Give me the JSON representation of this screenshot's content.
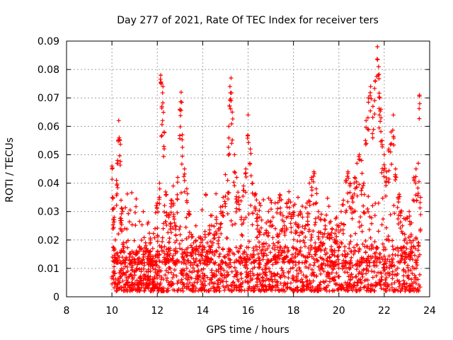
{
  "chart_data": {
    "type": "scatter",
    "title": "Day 277 of 2021, Rate Of TEC Index for receiver ters",
    "xlabel": "GPS time / hours",
    "ylabel": "ROTI / TECUs",
    "xlim": [
      8,
      24
    ],
    "ylim": [
      0,
      0.09
    ],
    "xticks": [
      8,
      10,
      12,
      14,
      16,
      18,
      20,
      22,
      24
    ],
    "yticks": [
      0,
      0.01,
      0.02,
      0.03,
      0.04,
      0.05,
      0.06,
      0.07,
      0.08,
      0.09
    ],
    "xtick_labels": [
      "8",
      "10",
      "12",
      "14",
      "16",
      "18",
      "20",
      "22",
      "24"
    ],
    "ytick_labels": [
      "0",
      "0.01",
      "0.02",
      "0.03",
      "0.04",
      "0.05",
      "0.06",
      "0.07",
      "0.08",
      "0.09"
    ],
    "grid": true,
    "marker": "+",
    "color": "#ff0000",
    "series": [
      {
        "x": [
          10.0,
          10.05,
          10.1,
          10.15,
          10.2,
          10.25,
          10.3,
          10.35,
          10.4,
          10.45,
          10.5,
          10.6,
          10.7,
          10.8,
          10.9,
          11.0,
          11.1,
          11.2,
          11.3,
          11.4,
          11.5,
          11.6,
          11.7,
          11.8,
          11.9,
          12.0,
          12.1,
          12.15,
          12.2,
          12.25,
          12.3,
          12.4,
          12.5,
          12.6,
          12.7,
          12.8,
          12.9,
          13.0,
          13.05,
          13.1,
          13.2,
          13.3,
          13.4,
          13.5,
          13.6,
          13.7,
          13.8,
          13.9,
          14.0,
          14.1,
          14.2,
          14.3,
          14.4,
          14.5,
          14.6,
          14.7,
          14.8,
          14.9,
          15.0,
          15.1,
          15.15,
          15.2,
          15.25,
          15.3,
          15.4,
          15.5,
          15.6,
          15.7,
          15.8,
          15.9,
          16.0,
          16.1,
          16.2,
          16.3,
          16.4,
          16.5,
          16.6,
          16.7,
          16.8,
          16.9,
          17.0,
          17.1,
          17.2,
          17.3,
          17.4,
          17.5,
          17.6,
          17.7,
          17.8,
          17.9,
          18.0,
          18.1,
          18.2,
          18.3,
          18.4,
          18.5,
          18.6,
          18.7,
          18.8,
          18.9,
          19.0,
          19.1,
          19.2,
          19.3,
          19.4,
          19.5,
          19.6,
          19.7,
          19.8,
          19.9,
          20.0,
          20.1,
          20.2,
          20.3,
          20.4,
          20.5,
          20.6,
          20.7,
          20.8,
          20.9,
          21.0,
          21.1,
          21.2,
          21.3,
          21.4,
          21.5,
          21.6,
          21.7,
          21.75,
          21.8,
          21.85,
          21.9,
          22.0,
          22.1,
          22.2,
          22.3,
          22.4,
          22.5,
          22.6,
          22.7,
          22.8,
          22.9,
          23.0,
          23.1,
          23.2,
          23.3,
          23.4,
          23.5,
          23.55,
          23.6
        ],
        "y": [
          0.046,
          0.035,
          0.028,
          0.02,
          0.041,
          0.048,
          0.062,
          0.055,
          0.034,
          0.031,
          0.019,
          0.012,
          0.009,
          0.015,
          0.011,
          0.013,
          0.01,
          0.016,
          0.012,
          0.014,
          0.018,
          0.013,
          0.02,
          0.017,
          0.024,
          0.033,
          0.04,
          0.078,
          0.067,
          0.074,
          0.058,
          0.036,
          0.029,
          0.034,
          0.039,
          0.025,
          0.042,
          0.066,
          0.072,
          0.057,
          0.045,
          0.038,
          0.03,
          0.022,
          0.019,
          0.025,
          0.017,
          0.021,
          0.02,
          0.023,
          0.019,
          0.025,
          0.018,
          0.022,
          0.028,
          0.024,
          0.03,
          0.035,
          0.043,
          0.041,
          0.06,
          0.074,
          0.077,
          0.065,
          0.05,
          0.042,
          0.035,
          0.028,
          0.039,
          0.045,
          0.064,
          0.052,
          0.04,
          0.036,
          0.029,
          0.033,
          0.027,
          0.022,
          0.026,
          0.03,
          0.034,
          0.028,
          0.024,
          0.031,
          0.036,
          0.027,
          0.025,
          0.033,
          0.037,
          0.029,
          0.032,
          0.026,
          0.035,
          0.03,
          0.028,
          0.024,
          0.033,
          0.04,
          0.042,
          0.044,
          0.038,
          0.03,
          0.027,
          0.022,
          0.025,
          0.021,
          0.026,
          0.024,
          0.02,
          0.028,
          0.025,
          0.03,
          0.034,
          0.041,
          0.044,
          0.04,
          0.035,
          0.042,
          0.047,
          0.05,
          0.048,
          0.04,
          0.062,
          0.07,
          0.074,
          0.067,
          0.076,
          0.088,
          0.081,
          0.07,
          0.066,
          0.055,
          0.05,
          0.044,
          0.052,
          0.058,
          0.064,
          0.045,
          0.035,
          0.03,
          0.025,
          0.022,
          0.028,
          0.03,
          0.026,
          0.042,
          0.045,
          0.047,
          0.071,
          0.035
        ]
      }
    ],
    "baseline_band": {
      "x_start": 10.0,
      "x_end": 23.6,
      "y_low": 0.002,
      "y_high": 0.018,
      "density_note": "dense cloud of points"
    }
  }
}
